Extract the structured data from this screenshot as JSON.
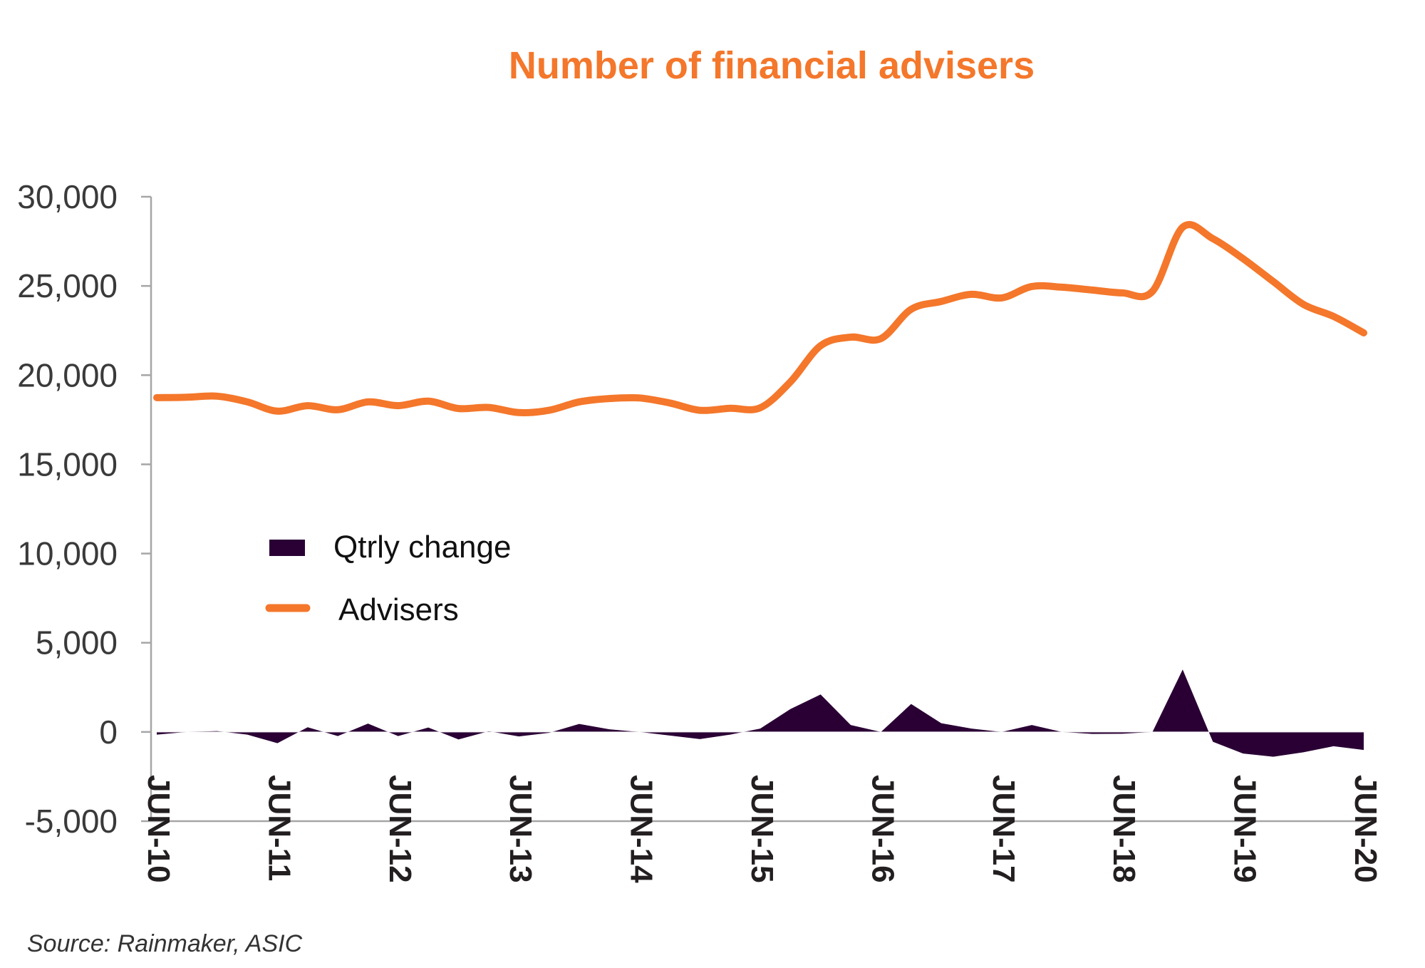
{
  "chart_data": {
    "type": "line",
    "title": "Number of financial advisers",
    "source": "Source: Rainmaker, ASIC",
    "xlabel": "",
    "ylabel": "",
    "ylim": [
      -5000,
      30000
    ],
    "yticks": [
      "30,000",
      "25,000",
      "20,000",
      "15,000",
      "10,000",
      "5,000",
      "0",
      "-5,000"
    ],
    "ytick_values": [
      30000,
      25000,
      20000,
      15000,
      10000,
      5000,
      0,
      -5000
    ],
    "xtick_labels": [
      "JUN-10",
      "JUN-11",
      "JUN-12",
      "JUN-13",
      "JUN-14",
      "JUN-15",
      "JUN-16",
      "JUN-17",
      "JUN-18",
      "JUN-19",
      "JUN-20"
    ],
    "x_frequency": "quarterly",
    "grid": false,
    "legend_placement": "center-left",
    "colors": {
      "title": "#F4772B",
      "advisers": "#F4772B",
      "qtrly_change": "#2A0034",
      "axis": "#A6A6A6"
    },
    "series": [
      {
        "name": "Qtrly change",
        "type": "area",
        "values": [
          -150,
          0,
          50,
          -150,
          -630,
          260,
          -230,
          470,
          -230,
          250,
          -420,
          40,
          -250,
          -50,
          450,
          150,
          0,
          -200,
          -400,
          -150,
          190,
          1280,
          2100,
          390,
          0,
          1570,
          490,
          190,
          0,
          390,
          0,
          -110,
          -100,
          0,
          3500,
          -550,
          -1210,
          -1390,
          -1140,
          -800,
          -1010
        ]
      },
      {
        "name": "Advisers",
        "type": "line",
        "values": [
          18740,
          18760,
          18820,
          18500,
          17980,
          18290,
          18060,
          18500,
          18290,
          18540,
          18130,
          18190,
          17900,
          18030,
          18500,
          18690,
          18720,
          18440,
          18030,
          18140,
          18170,
          19620,
          21650,
          22130,
          22050,
          23690,
          24130,
          24530,
          24330,
          24970,
          24930,
          24770,
          24610,
          24700,
          28290,
          27650,
          26530,
          25250,
          23970,
          23290,
          22370
        ]
      }
    ]
  }
}
